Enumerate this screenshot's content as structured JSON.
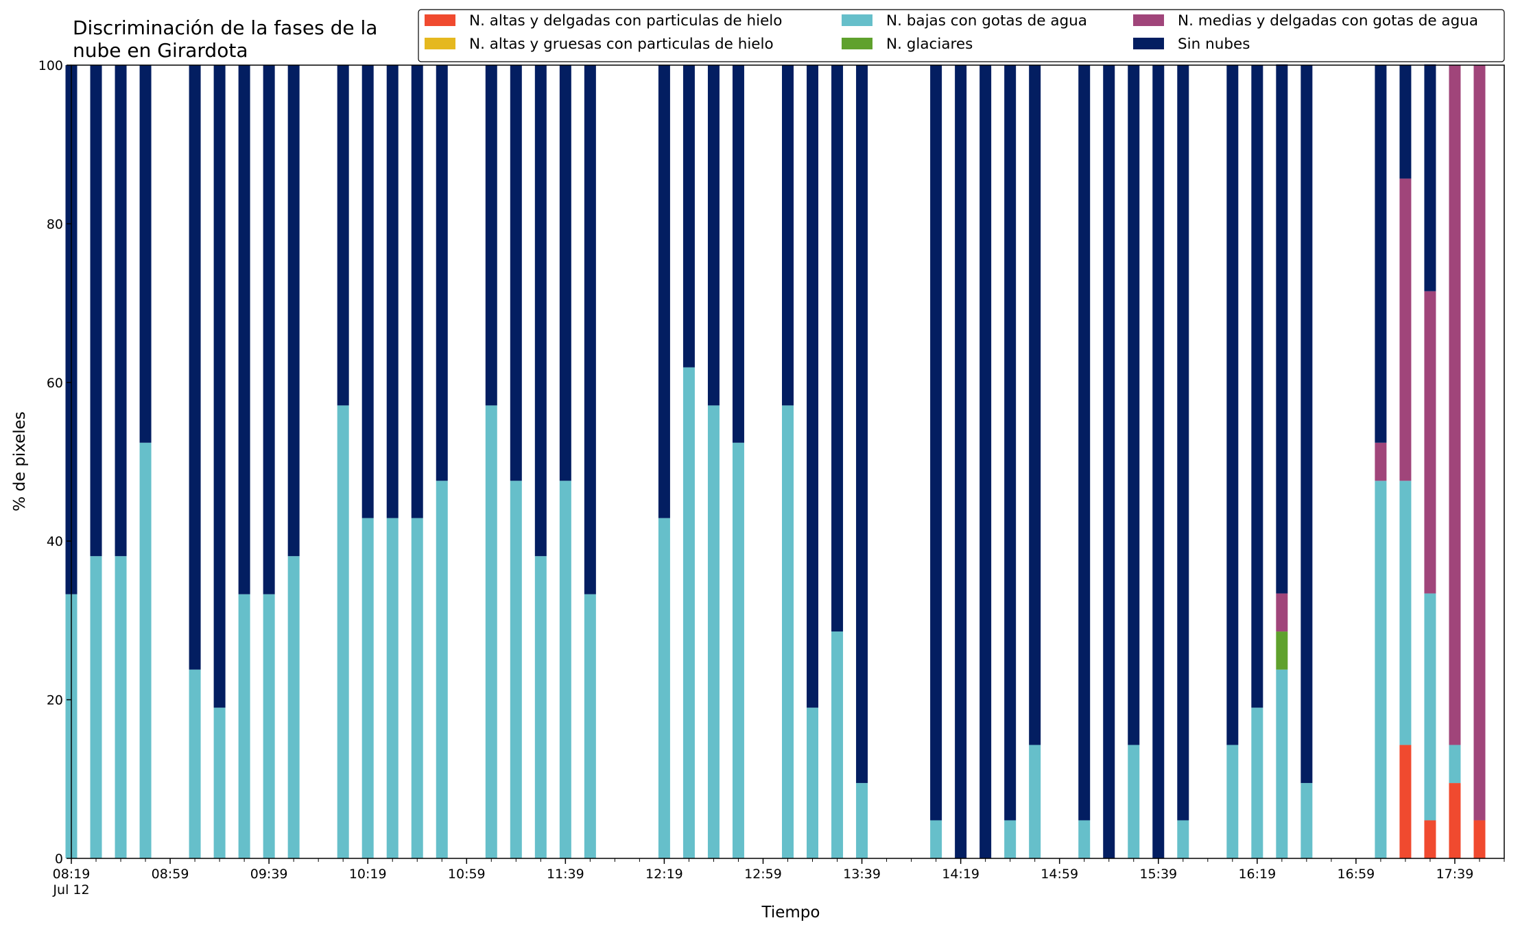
{
  "chart_data": {
    "type": "bar",
    "stacked": true,
    "title_lines": [
      "Discriminación de la fases de la",
      "nube en Girardota"
    ],
    "xlabel": "Tiempo",
    "ylabel": "% de pixeles",
    "ylim": [
      0,
      100
    ],
    "yticks": [
      0,
      20,
      40,
      60,
      80,
      100
    ],
    "grid": false,
    "legend_placement": "top-right",
    "date_label": "Jul 12",
    "xaxis": {
      "start": "08:19",
      "end": "17:59",
      "major_ticks": [
        "08:19",
        "08:59",
        "09:39",
        "10:19",
        "10:59",
        "11:39",
        "12:19",
        "12:59",
        "13:39",
        "14:19",
        "14:59",
        "15:39",
        "16:19",
        "16:59",
        "17:39"
      ],
      "minor_tick_step_minutes": 10
    },
    "x": [
      "08:19",
      "08:29",
      "08:39",
      "08:49",
      "09:09",
      "09:19",
      "09:29",
      "09:39",
      "09:49",
      "10:09",
      "10:19",
      "10:29",
      "10:39",
      "10:49",
      "11:09",
      "11:19",
      "11:29",
      "11:39",
      "11:49",
      "12:19",
      "12:29",
      "12:39",
      "12:49",
      "13:09",
      "13:19",
      "13:29",
      "13:39",
      "14:09",
      "14:19",
      "14:29",
      "14:39",
      "14:49",
      "15:09",
      "15:19",
      "15:29",
      "15:39",
      "15:49",
      "16:09",
      "16:19",
      "16:29",
      "16:39",
      "17:09",
      "17:19",
      "17:29",
      "17:39",
      "17:49"
    ],
    "series": [
      {
        "name": "N. altas y delgadas con particulas de hielo",
        "color": "#f04a2f",
        "values": [
          0,
          0,
          0,
          0,
          0,
          0,
          0,
          0,
          0,
          0,
          0,
          0,
          0,
          0,
          0,
          0,
          0,
          0,
          0,
          0,
          0,
          0,
          0,
          0,
          0,
          0,
          0,
          0,
          0,
          0,
          0,
          0,
          0,
          0,
          0,
          0,
          0,
          0,
          0,
          0,
          0,
          0,
          14.3,
          4.8,
          9.5,
          4.8
        ]
      },
      {
        "name": "N. altas y gruesas con particulas de hielo",
        "color": "#e5b81f",
        "values": [
          0,
          0,
          0,
          0,
          0,
          0,
          0,
          0,
          0,
          0,
          0,
          0,
          0,
          0,
          0,
          0,
          0,
          0,
          0,
          0,
          0,
          0,
          0,
          0,
          0,
          0,
          0,
          0,
          0,
          0,
          0,
          0,
          0,
          0,
          0,
          0,
          0,
          0,
          0,
          0,
          0,
          0,
          0,
          0,
          0,
          0
        ]
      },
      {
        "name": "N. bajas con gotas de agua",
        "color": "#66bfca",
        "values": [
          33.3,
          38.1,
          38.1,
          52.4,
          23.8,
          19.0,
          33.3,
          33.3,
          38.1,
          57.1,
          42.9,
          42.9,
          42.9,
          47.6,
          57.1,
          47.6,
          38.1,
          47.6,
          33.3,
          42.9,
          61.9,
          57.1,
          52.4,
          57.1,
          19.0,
          28.6,
          9.5,
          4.8,
          0,
          0,
          4.8,
          14.3,
          4.8,
          0,
          14.3,
          0,
          4.8,
          14.3,
          19.0,
          23.8,
          9.5,
          47.6,
          33.3,
          28.6,
          4.8,
          0
        ]
      },
      {
        "name": "N. glaciares",
        "color": "#5fa12d",
        "values": [
          0,
          0,
          0,
          0,
          0,
          0,
          0,
          0,
          0,
          0,
          0,
          0,
          0,
          0,
          0,
          0,
          0,
          0,
          0,
          0,
          0,
          0,
          0,
          0,
          0,
          0,
          0,
          0,
          0,
          0,
          0,
          0,
          0,
          0,
          0,
          0,
          0,
          0,
          0,
          4.8,
          0,
          0,
          0,
          0,
          0,
          0
        ]
      },
      {
        "name": "N. medias y delgadas con gotas de agua",
        "color": "#a0457a",
        "values": [
          0,
          0,
          0,
          0,
          0,
          0,
          0,
          0,
          0,
          0,
          0,
          0,
          0,
          0,
          0,
          0,
          0,
          0,
          0,
          0,
          0,
          0,
          0,
          0,
          0,
          0,
          0,
          0,
          0,
          0,
          0,
          0,
          0,
          0,
          0,
          0,
          0,
          0,
          0,
          4.8,
          0,
          4.8,
          38.1,
          38.1,
          85.7,
          95.2
        ]
      },
      {
        "name": "Sin nubes",
        "color": "#031e61",
        "values": [
          66.7,
          61.9,
          61.9,
          47.6,
          76.2,
          81.0,
          66.7,
          66.7,
          61.9,
          42.9,
          57.1,
          57.1,
          57.1,
          52.4,
          42.9,
          52.4,
          61.9,
          52.4,
          66.7,
          57.1,
          38.1,
          42.9,
          47.6,
          42.9,
          81.0,
          71.4,
          90.5,
          95.2,
          100,
          100,
          95.2,
          85.7,
          95.2,
          100,
          85.7,
          100,
          95.2,
          85.7,
          81.0,
          66.7,
          90.5,
          47.6,
          14.3,
          28.6,
          0,
          0
        ]
      }
    ]
  }
}
